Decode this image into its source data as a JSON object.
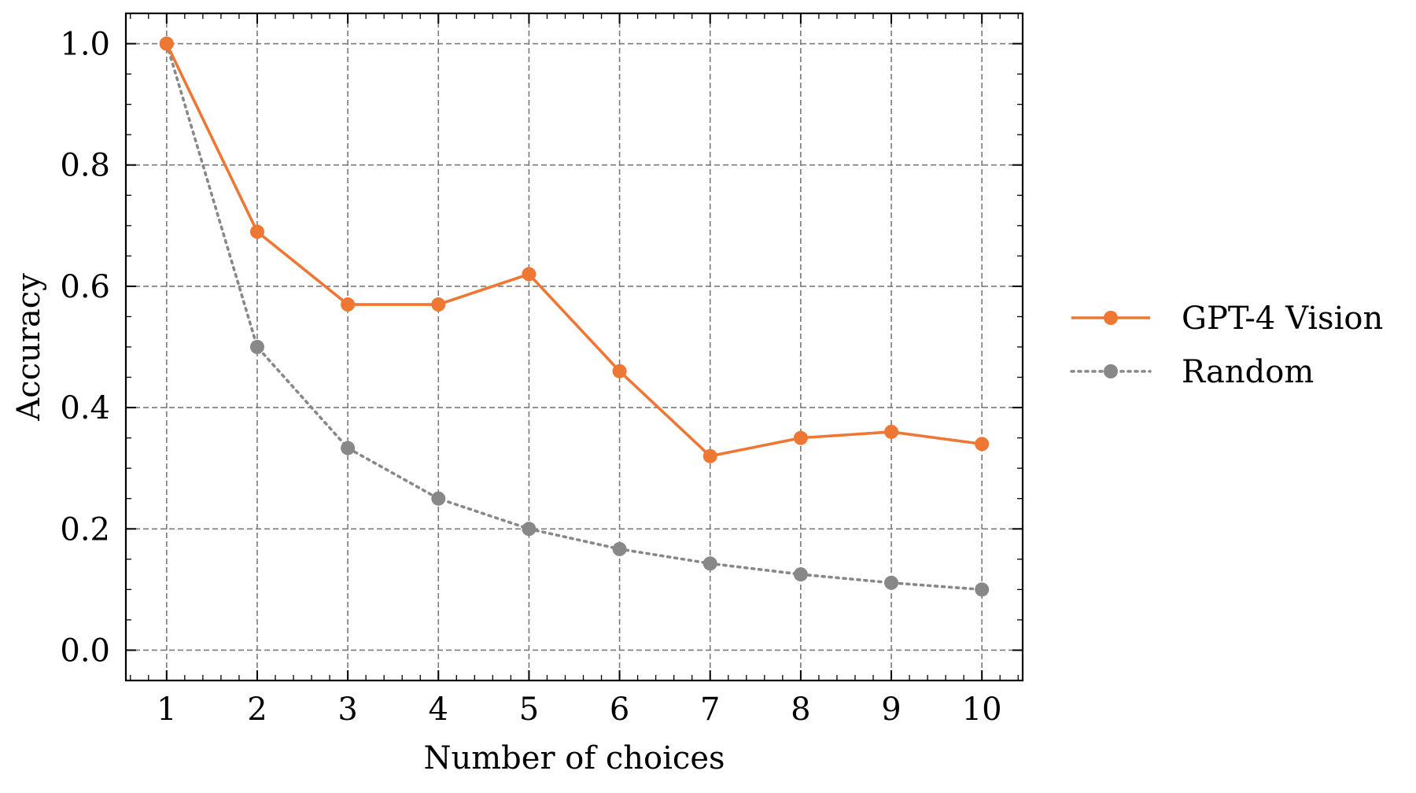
{
  "chart_data": {
    "type": "line",
    "title": "",
    "xlabel": "Number of choices",
    "ylabel": "Accuracy",
    "x": [
      1,
      2,
      3,
      4,
      5,
      6,
      7,
      8,
      9,
      10
    ],
    "xlim": [
      0.55,
      10.45
    ],
    "ylim": [
      -0.05,
      1.05
    ],
    "xticks": [
      1,
      2,
      3,
      4,
      5,
      6,
      7,
      8,
      9,
      10
    ],
    "xtick_labels": [
      "1",
      "2",
      "3",
      "4",
      "5",
      "6",
      "7",
      "8",
      "9",
      "10"
    ],
    "yticks": [
      0.0,
      0.2,
      0.4,
      0.6,
      0.8,
      1.0
    ],
    "ytick_labels": [
      "0.0",
      "0.2",
      "0.4",
      "0.6",
      "0.8",
      "1.0"
    ],
    "grid": true,
    "legend_position": "outside-right",
    "series": [
      {
        "name": "GPT-4 Vision",
        "color": "#EE7733",
        "line_style": "solid",
        "marker": "circle",
        "values": [
          1.0,
          0.69,
          0.57,
          0.57,
          0.62,
          0.46,
          0.32,
          0.35,
          0.36,
          0.34
        ]
      },
      {
        "name": "Random",
        "color": "#888888",
        "line_style": "dotted",
        "marker": "circle",
        "values": [
          1.0,
          0.5,
          0.3333,
          0.25,
          0.2,
          0.1667,
          0.1429,
          0.125,
          0.1111,
          0.1
        ]
      }
    ]
  }
}
